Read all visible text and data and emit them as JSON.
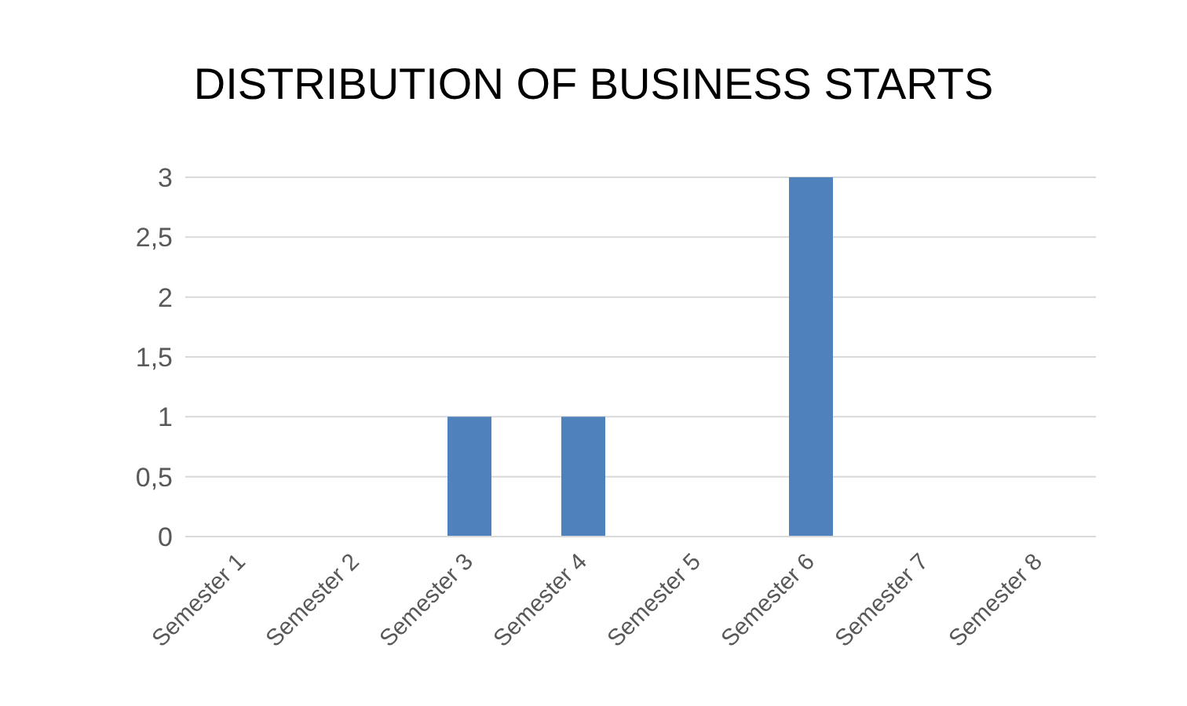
{
  "chart_data": {
    "type": "bar",
    "title": "DISTRIBUTION OF BUSINESS STARTS",
    "categories": [
      "Semester 1",
      "Semester 2",
      "Semester 3",
      "Semester 4",
      "Semester 5",
      "Semester 6",
      "Semester 7",
      "Semester 8"
    ],
    "values": [
      0,
      0,
      1,
      1,
      null,
      3,
      0,
      0
    ],
    "color": "#4f81bd",
    "ylim": [
      0,
      3
    ],
    "yticks": [
      0,
      {
        "value": 0.5,
        "label": "0,5"
      },
      1,
      {
        "value": 1.5,
        "label": "1,5"
      },
      2,
      {
        "value": 2.5,
        "label": "2,5"
      },
      3
    ],
    "grid": "y",
    "legend": false
  }
}
